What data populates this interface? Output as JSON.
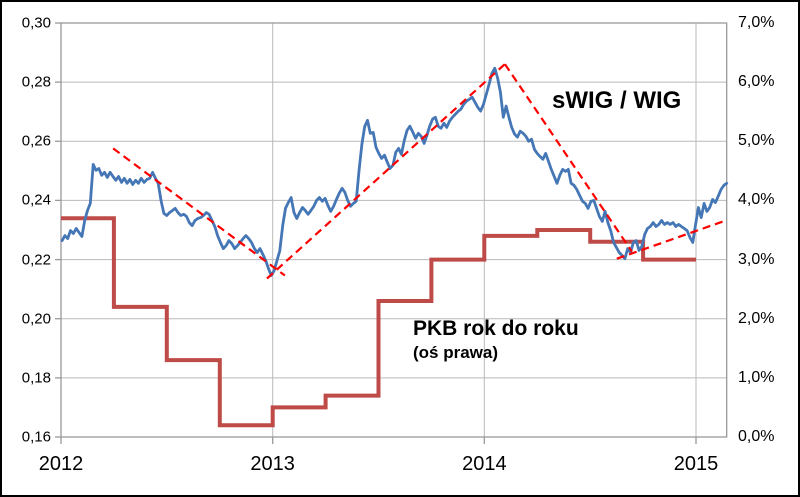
{
  "annotations": {
    "swig_label": "sWIG / WIG",
    "pkb_label": "PKB rok do roku",
    "pkb_sub": "(oś prawa)"
  },
  "chart_data": {
    "type": "line",
    "title": "",
    "grid_color": "#b9b9b9",
    "axis_color": "#999999",
    "trend_color": "#ff0000",
    "x_axis": {
      "labels": [
        "2012",
        "2013",
        "2014",
        "2015"
      ],
      "tick_years": [
        2012,
        2013,
        2014,
        2015
      ],
      "min": 2012,
      "max": 2015.145
    },
    "left_axis": {
      "labels": [
        "0,30",
        "0,28",
        "0,26",
        "0,24",
        "0,22",
        "0,20",
        "0,18",
        "0,16"
      ],
      "min": 0.16,
      "max": 0.3,
      "step": 0.02
    },
    "right_axis": {
      "labels": [
        "7,0%",
        "6,0%",
        "5,0%",
        "4,0%",
        "3,0%",
        "2,0%",
        "1,0%",
        "0,0%"
      ],
      "min": 0,
      "max": 7,
      "step": 1
    },
    "series": [
      {
        "name": "sWIG / WIG",
        "type": "line",
        "axis": "left",
        "color": "#4576b5",
        "width": 2.8,
        "t_start": 2012.005,
        "t_end": 2015.145,
        "values": [
          0.2264,
          0.2281,
          0.2271,
          0.2298,
          0.2288,
          0.2305,
          0.2292,
          0.2278,
          0.2332,
          0.2366,
          0.239,
          0.2522,
          0.2502,
          0.2508,
          0.2485,
          0.2495,
          0.2478,
          0.2495,
          0.2481,
          0.2468,
          0.2481,
          0.2461,
          0.2475,
          0.2458,
          0.2471,
          0.2454,
          0.2468,
          0.2458,
          0.2475,
          0.2461,
          0.2471,
          0.2475,
          0.2495,
          0.2475,
          0.2458,
          0.24,
          0.2356,
          0.2349,
          0.2359,
          0.2366,
          0.2373,
          0.2359,
          0.2349,
          0.2353,
          0.2346,
          0.2325,
          0.2315,
          0.2332,
          0.2339,
          0.2342,
          0.2349,
          0.2359,
          0.2353,
          0.2332,
          0.2312,
          0.2281,
          0.2258,
          0.2237,
          0.2247,
          0.2264,
          0.2254,
          0.2237,
          0.2247,
          0.2258,
          0.2271,
          0.2281,
          0.2271,
          0.2258,
          0.2237,
          0.2224,
          0.2237,
          0.2217,
          0.2197,
          0.2169,
          0.2146,
          0.2163,
          0.2197,
          0.223,
          0.2315,
          0.2373,
          0.2393,
          0.241,
          0.2359,
          0.2339,
          0.2359,
          0.2376,
          0.2366,
          0.2353,
          0.2366,
          0.238,
          0.24,
          0.241,
          0.2397,
          0.2407,
          0.2383,
          0.2363,
          0.238,
          0.2403,
          0.2424,
          0.2441,
          0.2427,
          0.24,
          0.238,
          0.239,
          0.2397,
          0.25,
          0.259,
          0.265,
          0.2671,
          0.2627,
          0.263,
          0.258,
          0.2559,
          0.2542,
          0.2553,
          0.2529,
          0.2508,
          0.2519,
          0.2563,
          0.2576,
          0.2556,
          0.2603,
          0.2637,
          0.2651,
          0.2631,
          0.261,
          0.2627,
          0.2617,
          0.2593,
          0.262,
          0.2651,
          0.2675,
          0.2681,
          0.2651,
          0.2644,
          0.2661,
          0.2647,
          0.2668,
          0.2681,
          0.2691,
          0.2701,
          0.2708,
          0.2725,
          0.2736,
          0.2742,
          0.2749,
          0.2732,
          0.2715,
          0.2702,
          0.2725,
          0.2759,
          0.2793,
          0.283,
          0.2847,
          0.2814,
          0.2766,
          0.2681,
          0.2719,
          0.2681,
          0.2647,
          0.2624,
          0.2614,
          0.2634,
          0.2627,
          0.2617,
          0.26,
          0.2607,
          0.2573,
          0.2559,
          0.2549,
          0.2539,
          0.2559,
          0.2532,
          0.2505,
          0.2481,
          0.2458,
          0.2485,
          0.2505,
          0.2498,
          0.2505,
          0.2458,
          0.2451,
          0.2437,
          0.2417,
          0.2397,
          0.239,
          0.2373,
          0.2397,
          0.24,
          0.2373,
          0.2346,
          0.2329,
          0.2363,
          0.2325,
          0.2298,
          0.2258,
          0.2241,
          0.2224,
          0.2214,
          0.2203,
          0.2237,
          0.2224,
          0.2258,
          0.2264,
          0.2231,
          0.2244,
          0.2285,
          0.2305,
          0.2312,
          0.2325,
          0.2312,
          0.2319,
          0.2332,
          0.2319,
          0.2325,
          0.2319,
          0.2325,
          0.2312,
          0.2319,
          0.2312,
          0.2305,
          0.2298,
          0.2275,
          0.2258,
          0.2319,
          0.2376,
          0.2342,
          0.239,
          0.2363,
          0.2376,
          0.2403,
          0.2393,
          0.2414,
          0.2437,
          0.2451,
          0.2458
        ]
      },
      {
        "name": "PKB rok do roku (oś prawa)",
        "type": "step",
        "axis": "right",
        "color": "#be4b48",
        "width": 4,
        "t_start": 2012.0,
        "t_step": 0.25,
        "t_end": 2015.0,
        "quarters": [
          "2012Q1",
          "2012Q2",
          "2012Q3",
          "2012Q4",
          "2013Q1",
          "2013Q2",
          "2013Q3",
          "2013Q4",
          "2014Q1",
          "2014Q2",
          "2014Q3",
          "2014Q4"
        ],
        "values": [
          3.7,
          2.2,
          1.3,
          0.2,
          0.5,
          0.7,
          2.3,
          3.0,
          3.4,
          3.5,
          3.3,
          3.0
        ]
      }
    ],
    "trendlines": [
      {
        "from": [
          2012.246,
          0.2576
        ],
        "to": [
          2013.058,
          0.2146
        ]
      },
      {
        "from": [
          2012.973,
          0.2136
        ],
        "to": [
          2014.097,
          0.2861
        ]
      },
      {
        "from": [
          2014.097,
          0.2861
        ],
        "to": [
          2014.697,
          0.2227
        ]
      },
      {
        "from": [
          2014.626,
          0.2203
        ],
        "to": [
          2015.141,
          0.2332
        ]
      }
    ]
  }
}
